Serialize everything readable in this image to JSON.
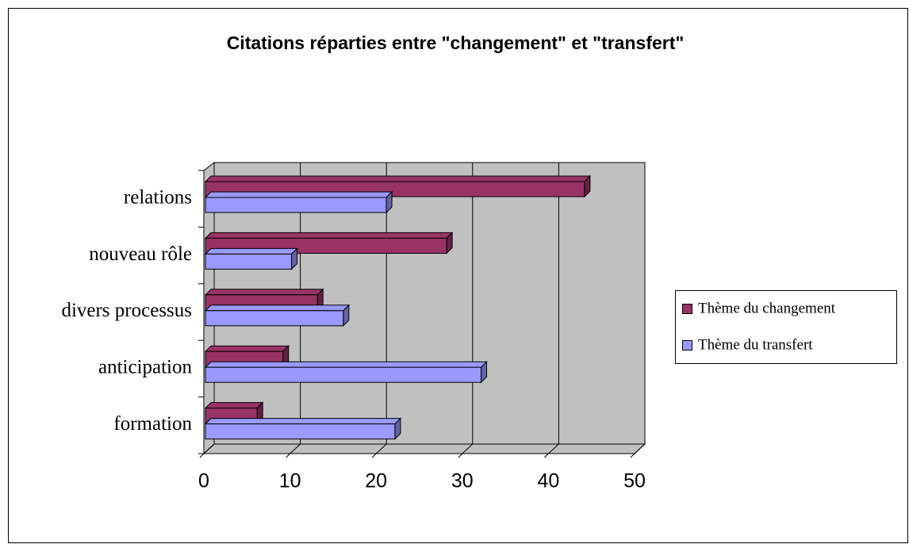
{
  "chart_data": {
    "type": "bar3d_horizontal",
    "title": "Citations réparties entre \"changement\" et \"transfert\"",
    "categories": [
      "formation",
      "anticipation",
      "divers processus",
      "nouveau rôle",
      "relations"
    ],
    "series": [
      {
        "name": "Thème du changement",
        "color": "#993366",
        "values": [
          6,
          9,
          13,
          28,
          44
        ]
      },
      {
        "name": "Thème du transfert",
        "color": "#9999ff",
        "values": [
          22,
          32,
          16,
          10,
          21
        ]
      }
    ],
    "xlim": [
      0,
      50
    ],
    "xticks": [
      0,
      10,
      20,
      30,
      40,
      50
    ],
    "grid": true,
    "legend": "right",
    "wall_color": "#c0c0c0"
  }
}
